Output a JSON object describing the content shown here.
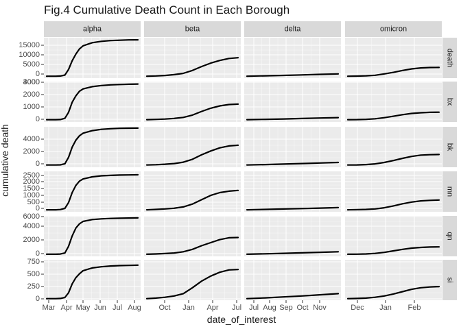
{
  "chart_data": {
    "type": "line",
    "title": "Fig.4 Cumulative Death Count in Each Borough",
    "xlabel": "date_of_interest",
    "ylabel": "cumulative death",
    "grid": true,
    "legend": "none",
    "columns": [
      {
        "name": "alpha",
        "ticks": [
          "Mar",
          "Apr",
          "May",
          "Jun",
          "Jul",
          "Aug"
        ]
      },
      {
        "name": "beta",
        "ticks": [
          "Oct",
          "Jan",
          "Apr",
          "Jul"
        ]
      },
      {
        "name": "delta",
        "ticks": [
          "Jul",
          "Aug",
          "Sep",
          "Oct",
          "Nov"
        ]
      },
      {
        "name": "omicron",
        "ticks": [
          "Dec",
          "Jan",
          "Feb"
        ]
      }
    ],
    "rows": [
      {
        "name": "death",
        "ticks": [
          "0",
          "5000",
          "10000",
          "15000"
        ],
        "ylim": [
          -1000,
          20000
        ]
      },
      {
        "name": "bx",
        "ticks": [
          "0",
          "1000",
          "2000",
          "3000",
          "4000"
        ],
        "ylim": [
          -250,
          4150
        ]
      },
      {
        "name": "bk",
        "ticks": [
          "0",
          "2000",
          "4000"
        ],
        "ylim": [
          -350,
          6000
        ]
      },
      {
        "name": "mn",
        "ticks": [
          "0",
          "500",
          "1000",
          "1500",
          "2000",
          "2500"
        ],
        "ylim": [
          -140,
          2680
        ]
      },
      {
        "name": "qn",
        "ticks": [
          "0",
          "2000",
          "4000",
          "6000"
        ],
        "ylim": [
          -350,
          6300
        ]
      },
      {
        "name": "si",
        "ticks": [
          "0",
          "250",
          "500",
          "750"
        ],
        "ylim": [
          -40,
          1000
        ]
      }
    ],
    "series": [
      {
        "column": "alpha",
        "row": "death",
        "x": [
          0,
          0.1,
          0.15,
          0.2,
          0.24,
          0.28,
          0.32,
          0.36,
          0.4,
          0.5,
          0.6,
          0.7,
          0.8,
          0.9,
          1
        ],
        "y": [
          0,
          0,
          100,
          600,
          3500,
          8000,
          11500,
          14200,
          15800,
          17400,
          18100,
          18500,
          18700,
          18850,
          18900
        ]
      },
      {
        "column": "alpha",
        "row": "bx",
        "x": [
          0,
          0.1,
          0.15,
          0.2,
          0.24,
          0.28,
          0.32,
          0.36,
          0.4,
          0.5,
          0.6,
          0.7,
          0.8,
          0.9,
          1
        ],
        "y": [
          0,
          0,
          20,
          150,
          800,
          1900,
          2600,
          3100,
          3350,
          3600,
          3720,
          3790,
          3830,
          3860,
          3880
        ]
      },
      {
        "column": "alpha",
        "row": "bk",
        "x": [
          0,
          0.1,
          0.15,
          0.2,
          0.24,
          0.28,
          0.32,
          0.36,
          0.4,
          0.5,
          0.6,
          0.7,
          0.8,
          0.9,
          1
        ],
        "y": [
          0,
          0,
          30,
          200,
          1200,
          2800,
          3900,
          4600,
          5000,
          5400,
          5600,
          5700,
          5760,
          5790,
          5800
        ]
      },
      {
        "column": "alpha",
        "row": "mn",
        "x": [
          0,
          0.1,
          0.15,
          0.2,
          0.24,
          0.28,
          0.32,
          0.36,
          0.4,
          0.5,
          0.6,
          0.7,
          0.8,
          0.9,
          1
        ],
        "y": [
          0,
          0,
          20,
          100,
          500,
          1200,
          1700,
          2000,
          2150,
          2300,
          2370,
          2400,
          2420,
          2430,
          2440
        ]
      },
      {
        "column": "alpha",
        "row": "qn",
        "x": [
          0,
          0.1,
          0.15,
          0.2,
          0.24,
          0.28,
          0.32,
          0.36,
          0.4,
          0.5,
          0.6,
          0.7,
          0.8,
          0.9,
          1
        ],
        "y": [
          0,
          0,
          30,
          200,
          1300,
          3000,
          4300,
          5000,
          5400,
          5700,
          5820,
          5880,
          5920,
          5950,
          5970
        ]
      },
      {
        "column": "alpha",
        "row": "si",
        "x": [
          0,
          0.1,
          0.15,
          0.2,
          0.24,
          0.28,
          0.32,
          0.36,
          0.4,
          0.5,
          0.6,
          0.7,
          0.8,
          0.9,
          1
        ],
        "y": [
          0,
          0,
          5,
          30,
          150,
          380,
          540,
          640,
          720,
          790,
          820,
          840,
          850,
          855,
          860
        ]
      },
      {
        "column": "beta",
        "row": "death",
        "x": [
          0,
          0.1,
          0.2,
          0.3,
          0.4,
          0.5,
          0.6,
          0.7,
          0.8,
          0.9,
          1
        ],
        "y": [
          0,
          150,
          400,
          800,
          1500,
          3000,
          5000,
          6800,
          8200,
          9200,
          9600
        ]
      },
      {
        "column": "beta",
        "row": "bx",
        "x": [
          0,
          0.1,
          0.2,
          0.3,
          0.4,
          0.5,
          0.6,
          0.7,
          0.8,
          0.9,
          1
        ],
        "y": [
          0,
          30,
          70,
          140,
          250,
          500,
          900,
          1250,
          1500,
          1650,
          1700
        ]
      },
      {
        "column": "beta",
        "row": "bk",
        "x": [
          0,
          0.1,
          0.2,
          0.3,
          0.4,
          0.5,
          0.6,
          0.7,
          0.8,
          0.9,
          1
        ],
        "y": [
          0,
          50,
          120,
          230,
          450,
          900,
          1600,
          2200,
          2700,
          3000,
          3100
        ]
      },
      {
        "column": "beta",
        "row": "mn",
        "x": [
          0,
          0.1,
          0.2,
          0.3,
          0.4,
          0.5,
          0.6,
          0.7,
          0.8,
          0.9,
          1
        ],
        "y": [
          0,
          25,
          60,
          110,
          200,
          400,
          700,
          1000,
          1200,
          1300,
          1350
        ]
      },
      {
        "column": "beta",
        "row": "qn",
        "x": [
          0,
          0.1,
          0.2,
          0.3,
          0.4,
          0.5,
          0.6,
          0.7,
          0.8,
          0.9,
          1
        ],
        "y": [
          0,
          50,
          110,
          200,
          400,
          800,
          1400,
          1900,
          2400,
          2700,
          2750
        ]
      },
      {
        "column": "beta",
        "row": "si",
        "x": [
          0,
          0.1,
          0.2,
          0.3,
          0.4,
          0.5,
          0.6,
          0.7,
          0.8,
          0.9,
          1
        ],
        "y": [
          0,
          15,
          35,
          70,
          130,
          280,
          450,
          580,
          680,
          740,
          750
        ]
      },
      {
        "column": "delta",
        "row": "death",
        "x": [
          0,
          0.2,
          0.4,
          0.6,
          0.8,
          1
        ],
        "y": [
          0,
          200,
          420,
          680,
          950,
          1200
        ]
      },
      {
        "column": "delta",
        "row": "bx",
        "x": [
          0,
          0.2,
          0.4,
          0.6,
          0.8,
          1
        ],
        "y": [
          0,
          40,
          80,
          130,
          180,
          230
        ]
      },
      {
        "column": "delta",
        "row": "bk",
        "x": [
          0,
          0.2,
          0.4,
          0.6,
          0.8,
          1
        ],
        "y": [
          0,
          70,
          150,
          230,
          320,
          400
        ]
      },
      {
        "column": "delta",
        "row": "mn",
        "x": [
          0,
          0.2,
          0.4,
          0.6,
          0.8,
          1
        ],
        "y": [
          0,
          25,
          55,
          85,
          120,
          150
        ]
      },
      {
        "column": "delta",
        "row": "qn",
        "x": [
          0,
          0.2,
          0.4,
          0.6,
          0.8,
          1
        ],
        "y": [
          0,
          70,
          150,
          230,
          320,
          400
        ]
      },
      {
        "column": "delta",
        "row": "si",
        "x": [
          0,
          0.2,
          0.4,
          0.6,
          0.8,
          1
        ],
        "y": [
          0,
          20,
          45,
          70,
          100,
          130
        ]
      },
      {
        "column": "omicron",
        "row": "death",
        "x": [
          0,
          0.1,
          0.2,
          0.3,
          0.4,
          0.5,
          0.6,
          0.7,
          0.8,
          0.9,
          1
        ],
        "y": [
          0,
          60,
          200,
          500,
          1200,
          2000,
          3000,
          3800,
          4300,
          4500,
          4550
        ]
      },
      {
        "column": "omicron",
        "row": "bx",
        "x": [
          0,
          0.1,
          0.2,
          0.3,
          0.4,
          0.5,
          0.6,
          0.7,
          0.8,
          0.9,
          1
        ],
        "y": [
          0,
          10,
          40,
          100,
          220,
          380,
          550,
          680,
          760,
          800,
          820
        ]
      },
      {
        "column": "omicron",
        "row": "bk",
        "x": [
          0,
          0.1,
          0.2,
          0.3,
          0.4,
          0.5,
          0.6,
          0.7,
          0.8,
          0.9,
          1
        ],
        "y": [
          0,
          20,
          70,
          180,
          400,
          700,
          1050,
          1350,
          1550,
          1620,
          1650
        ]
      },
      {
        "column": "omicron",
        "row": "mn",
        "x": [
          0,
          0.1,
          0.2,
          0.3,
          0.4,
          0.5,
          0.6,
          0.7,
          0.8,
          0.9,
          1
        ],
        "y": [
          0,
          8,
          25,
          60,
          140,
          270,
          420,
          540,
          620,
          660,
          680
        ]
      },
      {
        "column": "omicron",
        "row": "qn",
        "x": [
          0,
          0.1,
          0.2,
          0.3,
          0.4,
          0.5,
          0.6,
          0.7,
          0.8,
          0.9,
          1
        ],
        "y": [
          0,
          15,
          50,
          130,
          300,
          550,
          800,
          1000,
          1120,
          1180,
          1200
        ]
      },
      {
        "column": "omicron",
        "row": "si",
        "x": [
          0,
          0.1,
          0.2,
          0.3,
          0.4,
          0.5,
          0.6,
          0.7,
          0.8,
          0.9,
          1
        ],
        "y": [
          0,
          5,
          15,
          35,
          70,
          120,
          180,
          240,
          280,
          300,
          310
        ]
      }
    ]
  },
  "colors": {
    "panel_bg": "#EBEBEB",
    "grid_major": "#FFFFFF",
    "strip_bg": "#D9D9D9",
    "line": "#000000",
    "text": "#1A1A1A",
    "axis_text": "#4D4D4D"
  }
}
